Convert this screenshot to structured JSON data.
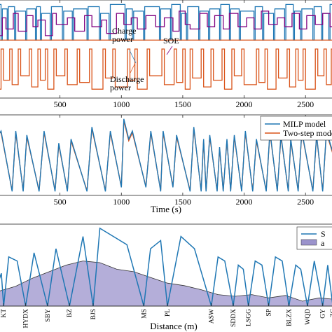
{
  "chart_data": [
    {
      "type": "line",
      "xlim": [
        0,
        2750
      ],
      "xticks": [
        500,
        1000,
        1500,
        2000,
        2500
      ],
      "xlabel": "",
      "ylabel": "",
      "annotations": [
        {
          "text": "Charge\npower",
          "color": "#1f77b4"
        },
        {
          "text": "SOE",
          "color": "#800080"
        },
        {
          "text": "Discharge\npower",
          "color": "#d95319"
        }
      ],
      "series": [
        {
          "name": "Charge power",
          "color": "#1f77b4",
          "kind": "step",
          "x": [
            0,
            20,
            30,
            70,
            80,
            130,
            140,
            220,
            230,
            300,
            310,
            340,
            350,
            420,
            430,
            520,
            530,
            600,
            610,
            720,
            730,
            820,
            830,
            900,
            910,
            1030,
            1040,
            1090,
            1100,
            1180,
            1190,
            1310,
            1320,
            1400,
            1410,
            1480,
            1490,
            1530,
            1540,
            1630,
            1640,
            1710,
            1720,
            1800,
            1810,
            1880,
            1890,
            1960,
            1970,
            2080,
            2090,
            2150,
            2160,
            2240,
            2250,
            2330,
            2340,
            2400,
            2410,
            2460,
            2470,
            2560,
            2570,
            2630,
            2640,
            2690,
            2700,
            2750
          ],
          "y": [
            1.0,
            0.2,
            0.9,
            0.2,
            0.95,
            0.2,
            0.85,
            0.2,
            0.9,
            0.2,
            0.95,
            0.2,
            0.8,
            0.2,
            0.95,
            0.2,
            0.85,
            0.2,
            0.9,
            0.2,
            0.95,
            0.2,
            0.8,
            0.2,
            1.0,
            0.2,
            0.9,
            0.2,
            0.85,
            0.2,
            0.95,
            0.2,
            0.9,
            0.2,
            1.0,
            0.2,
            0.8,
            0.2,
            0.95,
            0.2,
            0.85,
            0.2,
            0.9,
            0.2,
            1.0,
            0.2,
            0.9,
            0.2,
            0.85,
            0.2,
            0.95,
            0.2,
            0.8,
            0.2,
            0.9,
            0.2,
            1.0,
            0.2,
            0.85,
            0.2,
            0.9,
            0.2,
            0.95,
            0.2,
            0.8,
            0.2,
            1.0,
            0.2
          ]
        },
        {
          "name": "SOE",
          "color": "#800080",
          "kind": "step",
          "x": [
            0,
            30,
            60,
            120,
            160,
            230,
            280,
            320,
            380,
            440,
            470,
            560,
            620,
            700,
            760,
            840,
            880,
            960,
            1020,
            1080,
            1130,
            1200,
            1280,
            1350,
            1420,
            1470,
            1520,
            1560,
            1640,
            1700,
            1760,
            1830,
            1880,
            1950,
            2020,
            2080,
            2140,
            2200,
            2270,
            2330,
            2390,
            2450,
            2510,
            2580,
            2640,
            2700,
            2750
          ],
          "y": [
            0.3,
            0.7,
            0.45,
            0.8,
            0.4,
            0.75,
            0.5,
            0.65,
            0.3,
            0.8,
            0.55,
            0.7,
            0.4,
            0.75,
            0.5,
            0.65,
            0.35,
            0.8,
            0.55,
            0.7,
            0.45,
            0.75,
            0.5,
            0.7,
            0.4,
            0.85,
            0.55,
            0.45,
            0.8,
            0.5,
            0.75,
            0.45,
            0.8,
            0.5,
            0.7,
            0.45,
            0.85,
            0.55,
            0.7,
            0.5,
            0.8,
            0.45,
            0.75,
            0.55,
            0.8,
            0.5,
            0.6
          ]
        },
        {
          "name": "Discharge power",
          "color": "#d95319",
          "kind": "step",
          "x": [
            0,
            20,
            40,
            90,
            110,
            160,
            180,
            250,
            270,
            320,
            340,
            380,
            400,
            450,
            470,
            540,
            560,
            640,
            660,
            740,
            760,
            850,
            870,
            930,
            950,
            1050,
            1070,
            1110,
            1130,
            1210,
            1230,
            1330,
            1350,
            1430,
            1450,
            1500,
            1520,
            1560,
            1580,
            1650,
            1670,
            1730,
            1750,
            1820,
            1840,
            1900,
            1920,
            1980,
            2000,
            2100,
            2120,
            2170,
            2190,
            2260,
            2280,
            2350,
            2370,
            2420,
            2440,
            2480,
            2500,
            2580,
            2600,
            2650,
            2670,
            2710,
            2730,
            2750
          ],
          "y": [
            -0.9,
            0,
            -0.7,
            0,
            -0.8,
            0,
            -0.6,
            0,
            -0.85,
            0,
            -0.7,
            0,
            -0.9,
            0,
            -0.6,
            0,
            -0.8,
            0,
            -0.75,
            0,
            -0.9,
            0,
            -0.65,
            0,
            -0.85,
            0,
            -0.7,
            0,
            -0.9,
            0,
            -0.6,
            0,
            -0.8,
            0,
            -0.75,
            0,
            -0.9,
            0,
            -0.65,
            0,
            -0.85,
            0,
            -0.7,
            0,
            -0.9,
            0,
            -0.6,
            0,
            -0.8,
            0,
            -0.75,
            0,
            -0.9,
            0,
            -0.65,
            0,
            -0.85,
            0,
            -0.7,
            0,
            -0.9,
            0,
            -0.6,
            0,
            -0.8,
            0,
            -0.75,
            0
          ]
        }
      ],
      "ylim": [
        -1.1,
        1.1
      ]
    },
    {
      "type": "line",
      "xlim": [
        0,
        2750
      ],
      "xticks": [
        500,
        1000,
        1500,
        2000,
        2500
      ],
      "xlabel": "Time (s)",
      "ylabel": "",
      "legend": "top-right",
      "ylim": [
        0,
        1
      ],
      "series": [
        {
          "name": "MILP model",
          "color": "#1f77b4",
          "x": [
            0,
            20,
            110,
            140,
            200,
            230,
            330,
            370,
            460,
            490,
            560,
            590,
            720,
            760,
            870,
            910,
            1000,
            1020,
            1060,
            1090,
            1200,
            1240,
            1320,
            1340,
            1420,
            1450,
            1560,
            1590,
            1650,
            1670,
            1690,
            1720,
            1780,
            1800,
            1830,
            1860,
            1890,
            1920,
            1980,
            2010,
            2070,
            2100,
            2180,
            2210,
            2270,
            2300,
            2360,
            2380,
            2440,
            2470,
            2560,
            2590,
            2640,
            2670,
            2750
          ],
          "y": [
            0.75,
            0.8,
            0.05,
            0.8,
            0.05,
            0.75,
            0.05,
            0.8,
            0.05,
            0.65,
            0.05,
            0.7,
            0.05,
            0.85,
            0.05,
            0.8,
            0.1,
            0.95,
            0.7,
            0.8,
            0.1,
            0.8,
            0.05,
            0.8,
            0.1,
            0.75,
            0.05,
            0.85,
            0.05,
            0.7,
            0.05,
            0.75,
            0.05,
            0.6,
            0.05,
            0.7,
            0.05,
            0.75,
            0.05,
            0.8,
            0.05,
            0.7,
            0.05,
            0.8,
            0.05,
            0.75,
            0.05,
            0.7,
            0.05,
            0.8,
            0.05,
            0.75,
            0.05,
            0.8,
            0.4
          ]
        },
        {
          "name": "Two-step model",
          "color": "#d95319",
          "x": [
            0,
            20,
            110,
            140,
            200,
            230,
            330,
            370,
            460,
            490,
            560,
            590,
            720,
            760,
            870,
            910,
            1000,
            1020,
            1060,
            1090,
            1200,
            1240,
            1320,
            1340,
            1420,
            1450,
            1560,
            1590,
            1650,
            1670,
            1690,
            1720,
            1780,
            1800,
            1830,
            1860,
            1890,
            1920,
            1980,
            2010,
            2070,
            2100,
            2180,
            2210,
            2270,
            2300,
            2360,
            2380,
            2440,
            2470,
            2560,
            2590,
            2640,
            2670,
            2750
          ],
          "y": [
            0.78,
            0.78,
            0.06,
            0.78,
            0.06,
            0.73,
            0.06,
            0.78,
            0.06,
            0.63,
            0.06,
            0.68,
            0.06,
            0.83,
            0.06,
            0.78,
            0.11,
            0.93,
            0.68,
            0.78,
            0.11,
            0.78,
            0.06,
            0.78,
            0.11,
            0.73,
            0.06,
            0.83,
            0.06,
            0.68,
            0.06,
            0.73,
            0.06,
            0.58,
            0.06,
            0.68,
            0.06,
            0.73,
            0.06,
            0.78,
            0.06,
            0.68,
            0.06,
            0.78,
            0.06,
            0.73,
            0.06,
            0.68,
            0.06,
            0.78,
            0.06,
            0.73,
            0.06,
            0.78,
            0.38
          ]
        }
      ]
    },
    {
      "type": "line",
      "xlim": [
        0,
        100
      ],
      "xlabel": "Distance (m)",
      "ylabel": "",
      "legend": "top-right",
      "legend_text_visible": [
        "S",
        "a"
      ],
      "ylim": [
        0,
        1
      ],
      "station_labels": [
        "KT",
        "HYDX",
        "SBY",
        "BZ",
        "BJS",
        "MS",
        "PL",
        "ASW",
        "SDDX",
        "LSGG",
        "SP",
        "BLZX",
        "WQD",
        "GY",
        "ZC"
      ],
      "station_positions": [
        1.5,
        8,
        14.5,
        21,
        28,
        43,
        50,
        63,
        69.5,
        74,
        80,
        86,
        91.5,
        96,
        99
      ],
      "series": [
        {
          "name": "S",
          "color": "#1f77b4",
          "kind": "speed",
          "x": [
            0,
            0.8,
            1.5,
            3,
            5.5,
            8,
            10.5,
            14.5,
            17,
            21,
            25,
            28,
            30,
            34,
            38,
            43,
            45,
            48,
            50,
            54,
            58,
            63,
            65,
            67,
            69.5,
            71,
            72.5,
            74,
            76,
            78,
            80,
            82,
            84,
            86,
            88,
            89.5,
            91.5,
            93.5,
            96,
            97.5,
            99,
            100
          ],
          "y": [
            0.3,
            0.4,
            0.0,
            0.6,
            0.55,
            0.0,
            0.65,
            0.0,
            0.7,
            0.0,
            0.85,
            0.0,
            0.95,
            0.85,
            0.75,
            0.0,
            0.7,
            0.8,
            0.0,
            0.85,
            0.7,
            0.0,
            0.6,
            0.55,
            0.0,
            0.5,
            0.45,
            0.0,
            0.55,
            0.5,
            0.0,
            0.6,
            0.55,
            0.0,
            0.5,
            0.45,
            0.0,
            0.55,
            0.0,
            0.5,
            0.0,
            0.1
          ]
        },
        {
          "name": "a",
          "color": "#9b93cc",
          "kind": "area",
          "x": [
            0,
            5,
            10,
            15,
            20,
            25,
            30,
            35,
            40,
            45,
            50,
            55,
            60,
            65,
            70,
            75,
            80,
            85,
            90,
            95,
            100
          ],
          "y": [
            0.18,
            0.24,
            0.34,
            0.42,
            0.5,
            0.55,
            0.53,
            0.45,
            0.42,
            0.35,
            0.28,
            0.25,
            0.2,
            0.14,
            0.12,
            0.14,
            0.1,
            0.13,
            0.06,
            0.1,
            0.08
          ]
        }
      ]
    }
  ]
}
